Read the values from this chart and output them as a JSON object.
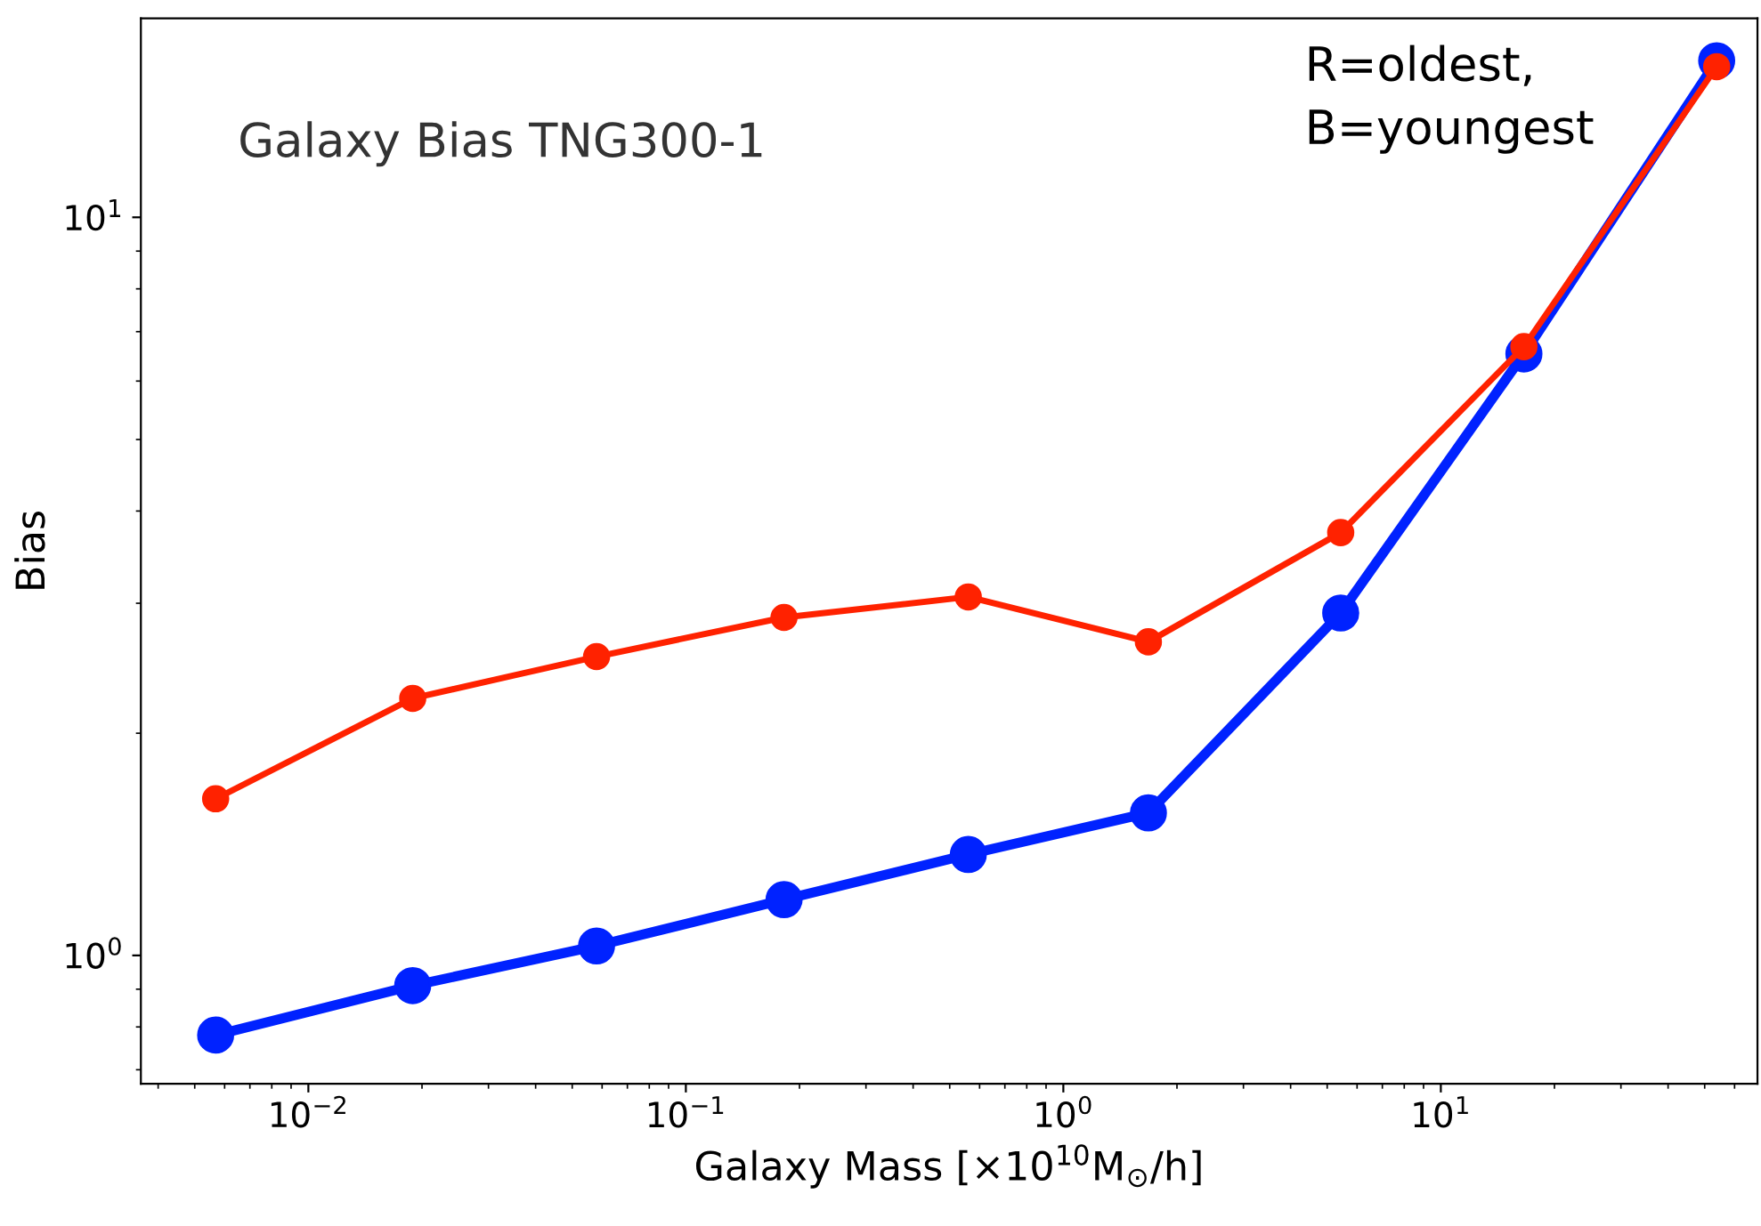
{
  "chart_data": {
    "type": "line",
    "title": "Galaxy Bias TNG300-1",
    "xlabel": "Galaxy Mass [×10$^{10}$M$_{⊙}$/h]",
    "ylabel": "Bias",
    "annotations": [
      "R=oldest,\nB=youngest"
    ],
    "x": [
      0.00568,
      0.0189,
      0.058,
      0.182,
      0.56,
      1.68,
      5.43,
      16.6,
      53.8
    ],
    "series": [
      {
        "color": "#0022ff",
        "values": [
          0.78,
          0.91,
          1.03,
          1.19,
          1.37,
          1.56,
          2.91,
          6.53,
          16.3
        ]
      },
      {
        "color": "#ff2200",
        "values": [
          1.63,
          2.23,
          2.54,
          2.87,
          3.06,
          2.66,
          3.74,
          6.68,
          16.0
        ]
      }
    ],
    "log": "xy",
    "xlim": [
      0.0036,
      69
    ],
    "ylim": [
      0.67,
      18.6
    ],
    "xticks": [
      {
        "value": 0.01,
        "label": "10$^{−2}$"
      },
      {
        "value": 0.1,
        "label": "10$^{−1}$"
      },
      {
        "value": 1,
        "label": "10$^{0}$"
      },
      {
        "value": 10,
        "label": "10$^{1}$"
      }
    ],
    "yticks": [
      {
        "value": 1,
        "label": "10$^{0}$"
      },
      {
        "value": 10,
        "label": "10$^{1}$"
      }
    ],
    "marker": "circle",
    "line_style": "solid",
    "grid": false,
    "legend": false
  }
}
